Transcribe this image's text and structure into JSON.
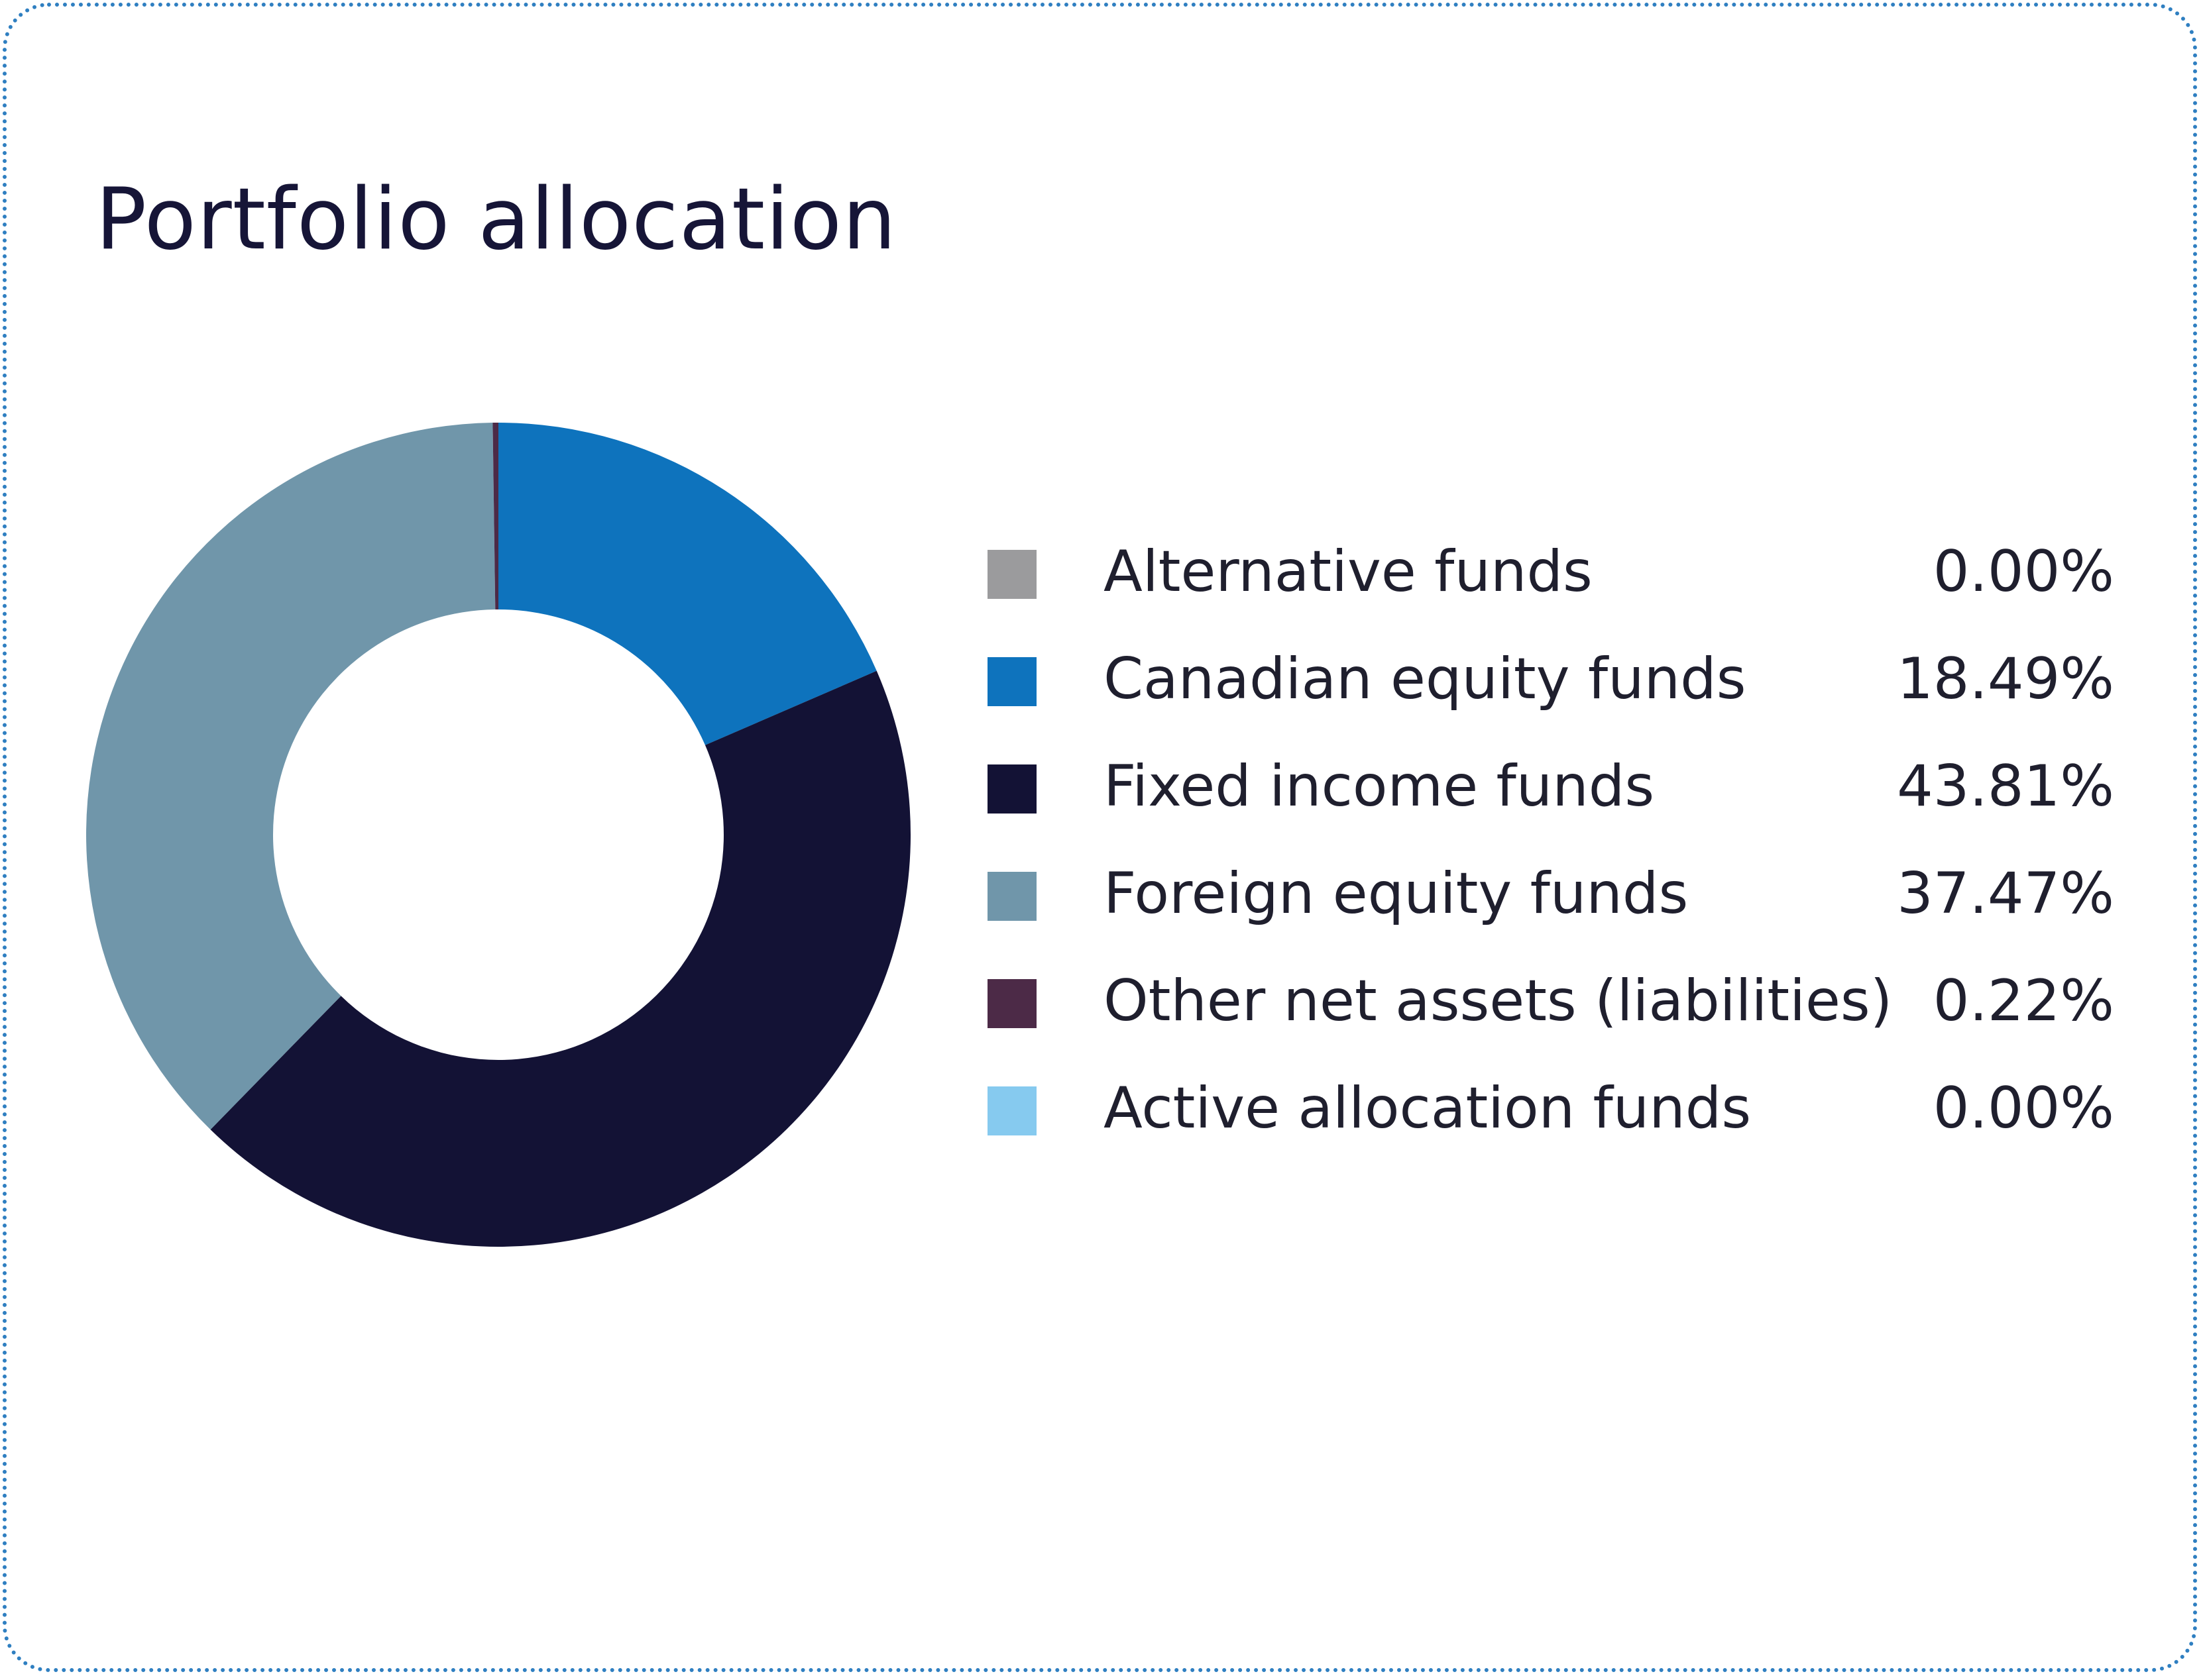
{
  "chart_data": {
    "type": "pie",
    "title": "Portfolio allocation",
    "donut": true,
    "legend_placement": "right",
    "categories": [
      "Alternative funds",
      "Canadian equity funds",
      "Fixed income funds",
      "Foreign equity funds",
      "Other net assets (liabilities)",
      "Active allocation funds"
    ],
    "values": [
      0.0,
      18.49,
      43.81,
      37.47,
      0.22,
      0.0
    ],
    "value_labels": [
      "0.00%",
      "18.49%",
      "43.81%",
      "37.47%",
      "0.22%",
      "0.00%"
    ],
    "colors": [
      "#9b9b9d",
      "#0e73bd",
      "#131235",
      "#7096aa",
      "#4c2a47",
      "#86caef"
    ]
  }
}
